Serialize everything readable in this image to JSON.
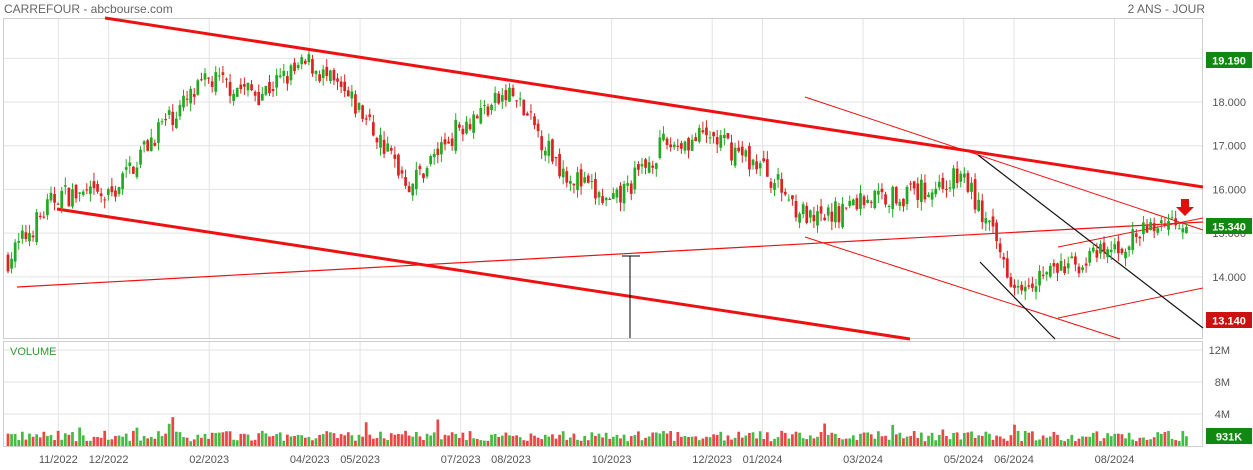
{
  "header": {
    "title": "CARREFOUR - abcbourse.com",
    "period": "2 ANS - JOUR"
  },
  "colors": {
    "up": "#22aa22",
    "down": "#dd2222",
    "trend": "#ee1111",
    "tag_last": "#118811",
    "tag_low": "#cc1111",
    "grid": "#e3e3e3"
  },
  "chart_data": [
    {
      "type": "candlestick",
      "title": "",
      "x_ticks": [
        "11/2022",
        "12/2022",
        "02/2023",
        "04/2023",
        "05/2023",
        "07/2023",
        "08/2023",
        "10/2023",
        "12/2023",
        "01/2024",
        "03/2024",
        "05/2024",
        "06/2024",
        "08/2024"
      ],
      "y_ticks": [
        "14.000",
        "15.000",
        "16.000",
        "17.000",
        "18.000"
      ],
      "ylim": [
        12.6,
        19.9
      ],
      "grid": true,
      "price_tags": {
        "high": "19.190",
        "last": "15.340",
        "low": "13.140"
      },
      "series": [
        {
          "values": [
            [
              "10/2022",
              14.4
            ],
            [
              "11/2022",
              15.9
            ],
            [
              "12/2022",
              15.8
            ],
            [
              "01/2023",
              17.4
            ],
            [
              "02/2023",
              18.5
            ],
            [
              "03/2023",
              18.2
            ],
            [
              "04/2023",
              18.9
            ],
            [
              "05/2023",
              17.8
            ],
            [
              "06/2023",
              16.1
            ],
            [
              "07/2023",
              17.5
            ],
            [
              "08/2023",
              18.2
            ],
            [
              "09/2023",
              16.5
            ],
            [
              "10/2023",
              15.6
            ],
            [
              "11/2023",
              17.0
            ],
            [
              "12/2023",
              17.2
            ],
            [
              "01/2024",
              16.5
            ],
            [
              "02/2024",
              15.2
            ],
            [
              "03/2024",
              15.8
            ],
            [
              "04/2024",
              15.9
            ],
            [
              "05/2024",
              16.3
            ],
            [
              "06/2024",
              13.9
            ],
            [
              "07/2024",
              14.2
            ],
            [
              "08/2024",
              14.6
            ],
            [
              "09/2024",
              15.3
            ]
          ]
        }
      ],
      "annotations": [
        "trend channel lines",
        "down arrow marker"
      ]
    },
    {
      "type": "bar",
      "title": "VOLUME",
      "y_ticks": [
        "4M",
        "8M",
        "12M"
      ],
      "ylim": [
        0,
        13
      ],
      "last_volume": "931K",
      "series": [
        {
          "values": [
            [
              "11/2022",
              1.2
            ],
            [
              "12/2022",
              1.1
            ],
            [
              "02/2023",
              1.4
            ],
            [
              "04/2023",
              1.2
            ],
            [
              "05/2023",
              1.3
            ],
            [
              "07/2023",
              1.1
            ],
            [
              "08/2023",
              1.3
            ],
            [
              "10/2023",
              1.2
            ],
            [
              "12/2023",
              1.1
            ],
            [
              "01/2024",
              1.2
            ],
            [
              "03/2024",
              1.1
            ],
            [
              "05/2024",
              1.2
            ],
            [
              "06/2024",
              1.6
            ],
            [
              "08/2024",
              1.2
            ]
          ]
        }
      ]
    }
  ]
}
